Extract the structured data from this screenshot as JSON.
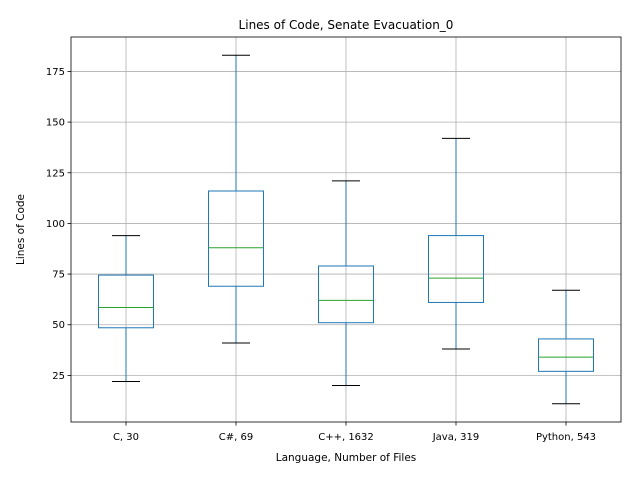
{
  "chart_data": {
    "type": "boxplot",
    "title": "Lines of Code, Senate Evacuation_0",
    "xlabel": "Language, Number of Files",
    "ylabel": "Lines of Code",
    "ylim": [
      2,
      192
    ],
    "yticks": [
      25,
      50,
      75,
      100,
      125,
      150,
      175
    ],
    "grid": true,
    "colors": {
      "box": "#1f77b4",
      "median": "#2ca02c",
      "whisker": "#1f77b4",
      "cap": "#000000",
      "grid": "#b0b0b0"
    },
    "categories": [
      "C, 30",
      "C#, 69",
      "C++, 1632",
      "Java, 319",
      "Python, 543"
    ],
    "boxes": [
      {
        "label": "C, 30",
        "whislo": 22,
        "q1": 48.5,
        "med": 58.5,
        "q3": 74.5,
        "whishi": 94
      },
      {
        "label": "C#, 69",
        "whislo": 41,
        "q1": 69,
        "med": 88,
        "q3": 116,
        "whishi": 183
      },
      {
        "label": "C++, 1632",
        "whislo": 20,
        "q1": 51,
        "med": 62,
        "q3": 79,
        "whishi": 121
      },
      {
        "label": "Java, 319",
        "whislo": 38,
        "q1": 61,
        "med": 73,
        "q3": 94,
        "whishi": 142
      },
      {
        "label": "Python, 543",
        "whislo": 11,
        "q1": 27,
        "med": 34,
        "q3": 43,
        "whishi": 67
      }
    ]
  }
}
